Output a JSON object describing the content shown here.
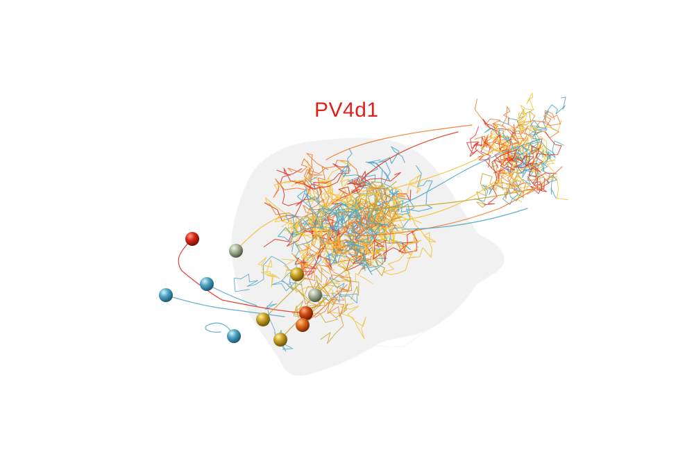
{
  "label": {
    "text": "PV4d1",
    "color": "#e0201b"
  },
  "colors": {
    "background": "#ffffff",
    "neuropil_fill": "#e6e6e6",
    "neuropil_stroke": "#f4f4f4",
    "red": "#e0301e",
    "orange": "#f07a2a",
    "yellow": "#f4c232",
    "gold": "#c9a227",
    "sage": "#a9b39a",
    "cyan": "#4ea6c4"
  }
}
